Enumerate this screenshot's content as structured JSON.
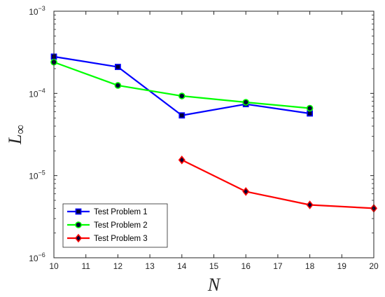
{
  "chart_data": {
    "type": "line",
    "title": "",
    "xlabel": "N",
    "ylabel": {
      "main": "L",
      "sub": "∞"
    },
    "xlim": [
      10,
      20
    ],
    "ylim": [
      1e-06,
      0.001
    ],
    "yscale": "log",
    "x_ticks": [
      "10",
      "11",
      "12",
      "13",
      "14",
      "15",
      "16",
      "17",
      "18",
      "19",
      "20"
    ],
    "y_ticks": [
      {
        "base": "10",
        "exp": "−6",
        "value": 1e-06
      },
      {
        "base": "10",
        "exp": "−5",
        "value": 1e-05
      },
      {
        "base": "10",
        "exp": "−4",
        "value": 0.0001
      },
      {
        "base": "10",
        "exp": "−3",
        "value": 0.001
      }
    ],
    "grid": false,
    "legend_position": "bottom-left",
    "series": [
      {
        "name": "Test Problem 1",
        "color": "#0000ff",
        "marker": "square",
        "x": [
          10,
          12,
          14,
          16,
          18
        ],
        "y": [
          0.00028,
          0.00021,
          5.4e-05,
          7.4e-05,
          5.7e-05
        ]
      },
      {
        "name": "Test Problem 2",
        "color": "#00ff00",
        "marker": "circle",
        "x": [
          10,
          12,
          14,
          16,
          18
        ],
        "y": [
          0.00024,
          0.000125,
          9.3e-05,
          7.8e-05,
          6.6e-05
        ]
      },
      {
        "name": "Test Problem 3",
        "color": "#ff0000",
        "marker": "diamond",
        "x": [
          14,
          16,
          18,
          20
        ],
        "y": [
          1.55e-05,
          6.4e-06,
          4.4e-06,
          4e-06
        ]
      }
    ]
  }
}
